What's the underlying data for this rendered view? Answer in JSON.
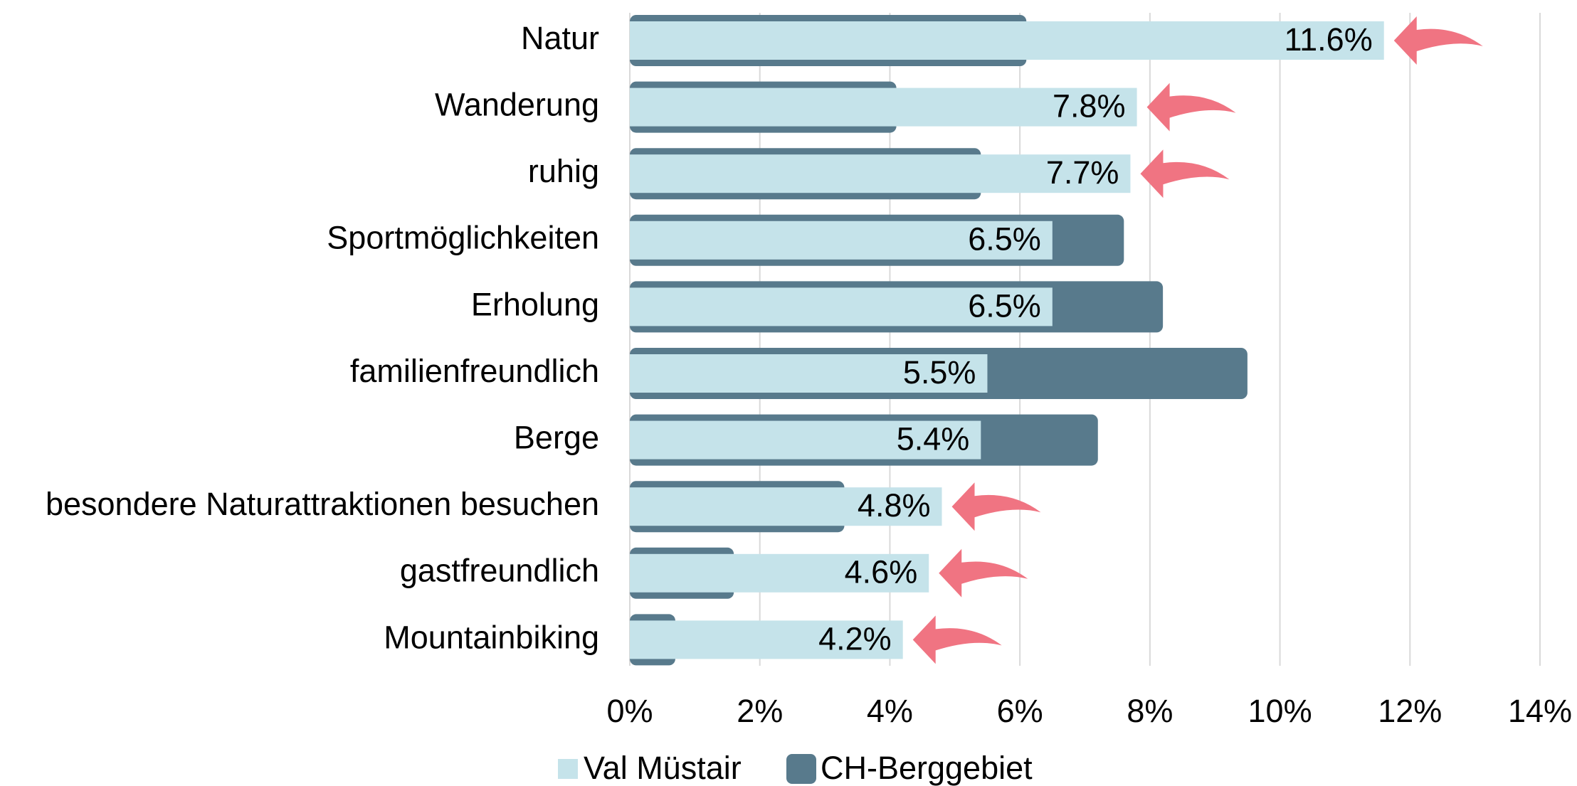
{
  "chart_data": {
    "type": "bar",
    "orientation": "horizontal",
    "categories": [
      "Natur",
      "Wanderung",
      "ruhig",
      "Sportmöglichkeiten",
      "Erholung",
      "familienfreundlich",
      "Berge",
      "besondere Naturattraktionen besuchen",
      "gastfreundlich",
      "Mountainbiking"
    ],
    "series": [
      {
        "name": "Val Müstair",
        "color": "#c5e3ea",
        "values": [
          11.6,
          7.8,
          7.7,
          6.5,
          6.5,
          5.5,
          5.4,
          4.8,
          4.6,
          4.2
        ],
        "value_labels": [
          "11.6%",
          "7.8%",
          "7.7%",
          "6.5%",
          "6.5%",
          "5.5%",
          "5.4%",
          "4.8%",
          "4.6%",
          "4.2%"
        ]
      },
      {
        "name": "CH-Berggebiet",
        "color": "#587a8c",
        "values": [
          6.1,
          4.1,
          5.4,
          7.6,
          8.2,
          9.5,
          7.2,
          3.3,
          1.6,
          0.7
        ]
      }
    ],
    "xlim": [
      0,
      14
    ],
    "xticks": [
      {
        "value": 0,
        "label": "0%"
      },
      {
        "value": 2,
        "label": "2%"
      },
      {
        "value": 4,
        "label": "4%"
      },
      {
        "value": 6,
        "label": "6%"
      },
      {
        "value": 8,
        "label": "8%"
      },
      {
        "value": 10,
        "label": "10%"
      },
      {
        "value": 12,
        "label": "12%"
      },
      {
        "value": 14,
        "label": "14%"
      }
    ],
    "grid": true,
    "legend": "bottom",
    "arrow_color": "#f07482"
  }
}
